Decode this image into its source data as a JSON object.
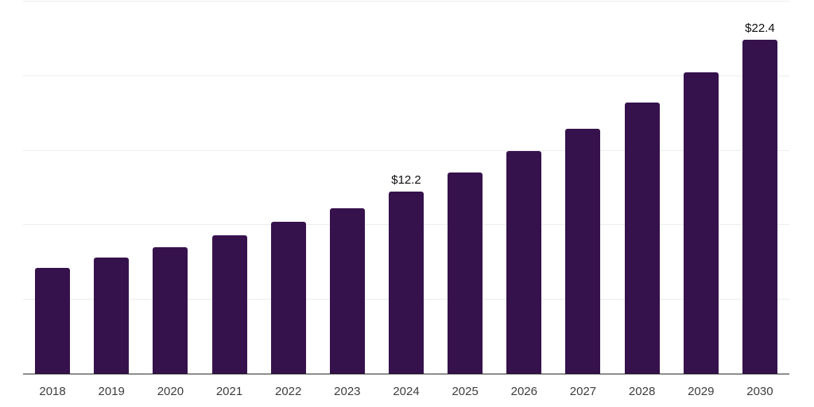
{
  "chart_data": {
    "type": "bar",
    "title": "",
    "categories": [
      "2018",
      "2019",
      "2020",
      "2021",
      "2022",
      "2023",
      "2024",
      "2025",
      "2026",
      "2027",
      "2028",
      "2029",
      "2030"
    ],
    "values": [
      7.1,
      7.8,
      8.5,
      9.3,
      10.2,
      11.1,
      12.2,
      13.5,
      14.9,
      16.4,
      18.2,
      20.2,
      22.4
    ],
    "value_labels": {
      "2024": "$12.2",
      "2030": "$22.4"
    },
    "xlabel": "",
    "ylabel": "",
    "ylim": [
      0,
      25
    ],
    "grid_step": 5,
    "grid": "horizontal-only",
    "legend_position": "none",
    "y_tick_labels_visible": false,
    "colors": {
      "bar": "#36124C",
      "grid": "#EDEDED",
      "axis": "#2A2A2A",
      "tick_label": "#3D3D3D",
      "value_label": "#0E0E0E",
      "background": "#FFFFFF"
    }
  }
}
